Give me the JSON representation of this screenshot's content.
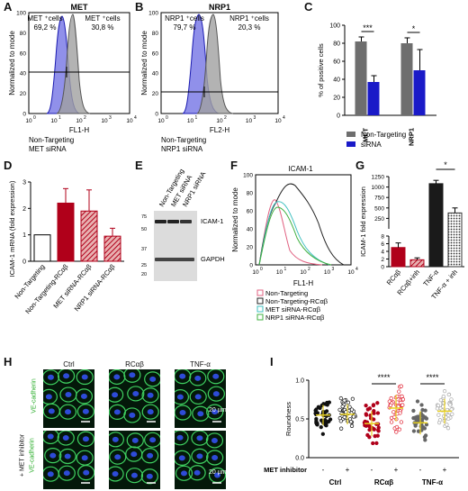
{
  "panel_letters": [
    "A",
    "B",
    "C",
    "D",
    "E",
    "F",
    "G",
    "H",
    "I"
  ],
  "panelA": {
    "title": "MET",
    "ylabel": "Normalized to mode",
    "xlabel": "FL1-H",
    "x_ticks": [
      "10",
      "10",
      "10",
      "10",
      "10"
    ],
    "x_tick_exps": [
      "0",
      "1",
      "2",
      "3",
      "4"
    ],
    "y_ticks": [
      "100",
      "80",
      "60",
      "40",
      "20",
      "0"
    ],
    "gate_left_label": "MET ⁺cells",
    "gate_left_value": "69,2 %",
    "gate_right_label": "MET ⁺cells",
    "gate_right_value": "30,8 %",
    "legend_ctrl": "Non-Targeting",
    "legend_sirna": "MET siRNA"
  },
  "panelB": {
    "title": "NRP1",
    "ylabel": "Normalized to mode",
    "xlabel": "FL2-H",
    "x_ticks": [
      "10",
      "10",
      "10",
      "10",
      "10"
    ],
    "x_tick_exps": [
      "0",
      "1",
      "2",
      "3",
      "4"
    ],
    "y_ticks": [
      "100",
      "80",
      "60",
      "40",
      "20",
      "0"
    ],
    "gate_left_label": "NRP1 ⁺cells",
    "gate_left_value": "79,7 %",
    "gate_right_label": "NRP1 ⁺cells",
    "gate_right_value": "20,3 %",
    "legend_ctrl": "Non-Targeting",
    "legend_sirna": "NRP1 siRNA"
  },
  "panelE": {
    "lanes": [
      "Non-Targeting",
      "MET siRNA",
      "NRP1 siRNA"
    ],
    "bands": [
      "ICAM-1",
      "GAPDH"
    ],
    "markers": [
      "75",
      "50",
      "37",
      "25",
      "20"
    ]
  },
  "panelF": {
    "title": "ICAM-1",
    "ylabel": "Normalized to mode",
    "xlabel": "FL1-H",
    "y_ticks": [
      "100",
      "80",
      "60",
      "40",
      "20",
      "0"
    ],
    "x_ticks": [
      "10",
      "10",
      "10",
      "10",
      "10"
    ],
    "x_tick_exps": [
      "0",
      "1",
      "2",
      "3",
      "4"
    ],
    "legend": [
      "Non-Targeting",
      "Non-Targeting-RCαβ",
      "MET siRNA-RCαβ",
      "NRP1 siRNA-RCαβ"
    ],
    "legend_colors": [
      "#e06080",
      "#222222",
      "#40c0c0",
      "#40b040"
    ]
  },
  "panelH": {
    "col_labels": [
      "Ctrl",
      "RCαβ",
      "TNF-α"
    ],
    "row1_label": "VE-cadherin",
    "row2_label_prefix": "+ MET inhibitor",
    "row2_label": "VE-cadherin",
    "scalebar": "20 µm"
  },
  "colors": {
    "gray": "#6e6e6e",
    "blue": "#1a1ac8",
    "red": "#b0001a",
    "black": "#1a1a1a",
    "lightgray": "#cfcfcf",
    "ctrl_hist": "#b0b0b0",
    "sirna_hist": "#3535d8"
  },
  "chart_data": [
    {
      "id": "C",
      "type": "bar",
      "ylabel": "% of positive cells",
      "categories": [
        "MET",
        "NRP1"
      ],
      "ylim": [
        0,
        100
      ],
      "yticks": [
        "0",
        "20",
        "40",
        "60",
        "80",
        "100"
      ],
      "series": [
        {
          "name": "Non-Targeting",
          "color": "#6e6e6e",
          "values": [
            82,
            80
          ],
          "errors": [
            5,
            6
          ]
        },
        {
          "name": "siRNA",
          "color": "#1a1ac8",
          "values": [
            37,
            50
          ],
          "errors": [
            7,
            23
          ]
        }
      ],
      "significance": [
        "***",
        "*"
      ]
    },
    {
      "id": "D",
      "type": "bar",
      "ylabel": "ICAM-1 mRNA (fold expression)",
      "categories": [
        "Non-Targeting",
        "Non-Targeting-RCαβ",
        "MET siRNA-RCαβ",
        "NRP1 siRNA-RCαβ"
      ],
      "values": [
        1.0,
        2.2,
        1.9,
        0.95
      ],
      "errors": [
        0,
        0.55,
        0.8,
        0.3
      ],
      "ylim": [
        0,
        3
      ],
      "yticks": [
        "0",
        "1",
        "2",
        "3"
      ],
      "bar_styles": [
        "white",
        "red",
        "hatch",
        "hatch"
      ]
    },
    {
      "id": "G",
      "type": "bar",
      "ylabel": "ICAM-1 fold expression",
      "categories": [
        "RCαβ",
        "RCαβ+inh",
        "TNF-α",
        "TNF-α + inh"
      ],
      "values": [
        5.0,
        1.8,
        1080,
        380
      ],
      "errors": [
        1.2,
        0.5,
        80,
        120
      ],
      "yticks": [
        "0",
        "2",
        "4",
        "6",
        "8",
        "250",
        "500",
        "750",
        "1000",
        "1250"
      ],
      "significance": [
        "*"
      ]
    },
    {
      "id": "I",
      "type": "scatter",
      "ylabel": "Roundness",
      "groups": [
        "Ctrl",
        "RCαβ",
        "TNF-α"
      ],
      "row_label": "MET inhibitor",
      "conditions": [
        "-",
        "+",
        "-",
        "+",
        "-",
        "+"
      ],
      "means": [
        0.55,
        0.56,
        0.44,
        0.64,
        0.45,
        0.6
      ],
      "sds": [
        0.13,
        0.13,
        0.16,
        0.17,
        0.15,
        0.16
      ],
      "ylim": [
        0,
        1
      ],
      "yticks": [
        "0.0",
        "0.5",
        "1.0"
      ],
      "significance": [
        "****",
        "****"
      ]
    }
  ]
}
